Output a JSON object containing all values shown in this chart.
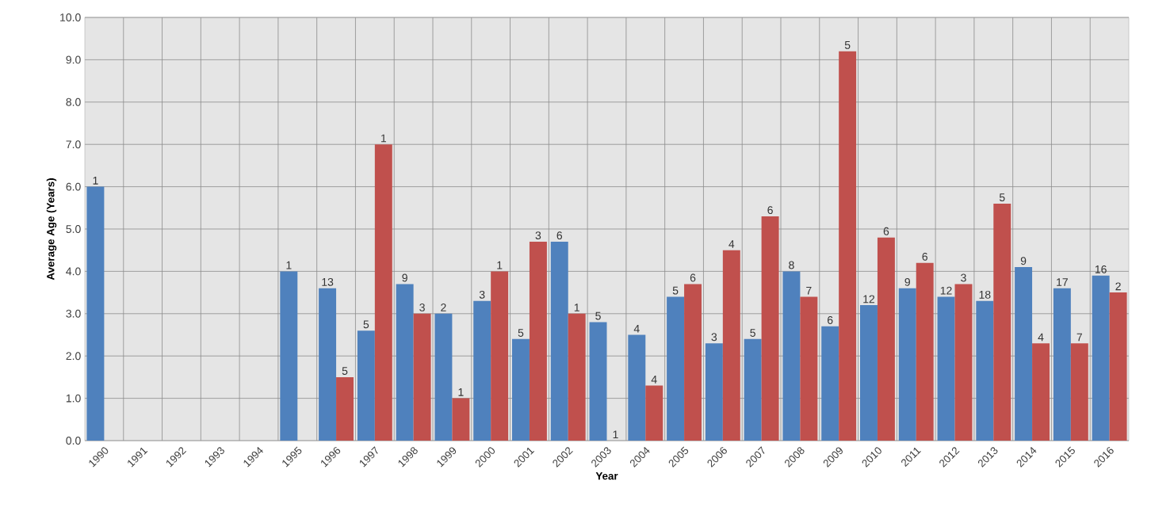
{
  "chart_data": {
    "type": "bar",
    "xlabel": "Year",
    "ylabel": "Average Age (Years)",
    "categories": [
      "1990",
      "1991",
      "1992",
      "1993",
      "1994",
      "1995",
      "1996",
      "1997",
      "1998",
      "1999",
      "2000",
      "2001",
      "2002",
      "2003",
      "2004",
      "2005",
      "2006",
      "2007",
      "2008",
      "2009",
      "2010",
      "2011",
      "2012",
      "2013",
      "2014",
      "2015",
      "2016"
    ],
    "series": [
      {
        "color": "#4f81bd",
        "values": [
          6.0,
          null,
          null,
          null,
          null,
          4.0,
          3.6,
          2.6,
          3.7,
          3.0,
          3.3,
          2.4,
          4.7,
          2.8,
          2.5,
          3.4,
          2.3,
          2.4,
          4.0,
          2.7,
          3.2,
          3.6,
          3.4,
          3.3,
          4.1,
          3.6,
          3.9
        ]
      },
      {
        "color": "#c0504d",
        "values": [
          null,
          null,
          null,
          null,
          null,
          null,
          1.5,
          7.0,
          3.0,
          1.0,
          4.0,
          4.7,
          3.0,
          0,
          1.3,
          3.7,
          4.5,
          5.3,
          3.4,
          9.2,
          4.8,
          4.2,
          3.7,
          5.6,
          2.3,
          2.3,
          3.5
        ]
      }
    ],
    "annotations": [
      {
        "text": "1",
        "x": "1990",
        "y": 6.0
      },
      {
        "text": "1",
        "x": "1995",
        "y": 4.0
      },
      {
        "text": "13",
        "x": "1996",
        "y": 3.6
      },
      {
        "text": "5",
        "x": "1996",
        "y": 1.5
      },
      {
        "text": "5",
        "x": "1997",
        "y": 2.6
      },
      {
        "text": "1",
        "x": "1997",
        "y": 7.0
      },
      {
        "text": "9",
        "x": "1998",
        "y": 3.7
      },
      {
        "text": "3",
        "x": "1998",
        "y": 3.0
      },
      {
        "text": "2",
        "x": "1999",
        "y": 3.0
      },
      {
        "text": "1",
        "x": "1999",
        "y": 1.0
      },
      {
        "text": "3",
        "x": "2000",
        "y": 3.3
      },
      {
        "text": "1",
        "x": "2000",
        "y": 4.0
      },
      {
        "text": "5",
        "x": "2001",
        "y": 2.4
      },
      {
        "text": "3",
        "x": "2001",
        "y": 4.7
      },
      {
        "text": "6",
        "x": "2002",
        "y": 4.7
      },
      {
        "text": "1",
        "x": "2002",
        "y": 3.0
      },
      {
        "text": "5",
        "x": "2003",
        "y": 2.8
      },
      {
        "text": "1",
        "x": "2003",
        "y": 0
      },
      {
        "text": "4",
        "x": "2004",
        "y": 2.5
      },
      {
        "text": "4",
        "x": "2004",
        "y": 1.3
      },
      {
        "text": "5",
        "x": "2005",
        "y": 3.4
      },
      {
        "text": "6",
        "x": "2005",
        "y": 3.7
      },
      {
        "text": "3",
        "x": "2006",
        "y": 2.3
      },
      {
        "text": "4",
        "x": "2006",
        "y": 4.5
      },
      {
        "text": "5",
        "x": "2007",
        "y": 2.4
      },
      {
        "text": "6",
        "x": "2007",
        "y": 5.3
      },
      {
        "text": "8",
        "x": "2008",
        "y": 4.0
      },
      {
        "text": "7",
        "x": "2008",
        "y": 3.4
      },
      {
        "text": "6",
        "x": "2009",
        "y": 2.7
      },
      {
        "text": "5",
        "x": "2009",
        "y": 9.2
      },
      {
        "text": "12",
        "x": "2010",
        "y": 3.2
      },
      {
        "text": "6",
        "x": "2010",
        "y": 4.8
      },
      {
        "text": "9",
        "x": "2011",
        "y": 3.6
      },
      {
        "text": "6",
        "x": "2011",
        "y": 4.2
      },
      {
        "text": "12",
        "x": "2012",
        "y": 3.4
      },
      {
        "text": "3",
        "x": "2012",
        "y": 3.7
      },
      {
        "text": "18",
        "x": "2013",
        "y": 3.3
      },
      {
        "text": "5",
        "x": "2013",
        "y": 5.6
      },
      {
        "text": "9",
        "x": "2014",
        "y": 4.1
      },
      {
        "text": "4",
        "x": "2014",
        "y": 2.3
      },
      {
        "text": "17",
        "x": "2015",
        "y": 3.6
      },
      {
        "text": "7",
        "x": "2015",
        "y": 2.3
      },
      {
        "text": "16",
        "x": "2016",
        "y": 3.9
      },
      {
        "text": "2",
        "x": "2016",
        "y": 3.5
      }
    ],
    "ylim": [
      0,
      10
    ],
    "yticks": [
      {
        "value": 0,
        "label": "0.0"
      },
      {
        "value": 1,
        "label": "1.0"
      },
      {
        "value": 2,
        "label": "2.0"
      },
      {
        "value": 3,
        "label": "3.0"
      },
      {
        "value": 4,
        "label": "4.0"
      },
      {
        "value": 5,
        "label": "5.0"
      },
      {
        "value": 6,
        "label": "6.0"
      },
      {
        "value": 7,
        "label": "7.0"
      },
      {
        "value": 8,
        "label": "8.0"
      },
      {
        "value": 9,
        "label": "9.0"
      },
      {
        "value": 10,
        "label": "10.0"
      }
    ],
    "grid": true
  }
}
